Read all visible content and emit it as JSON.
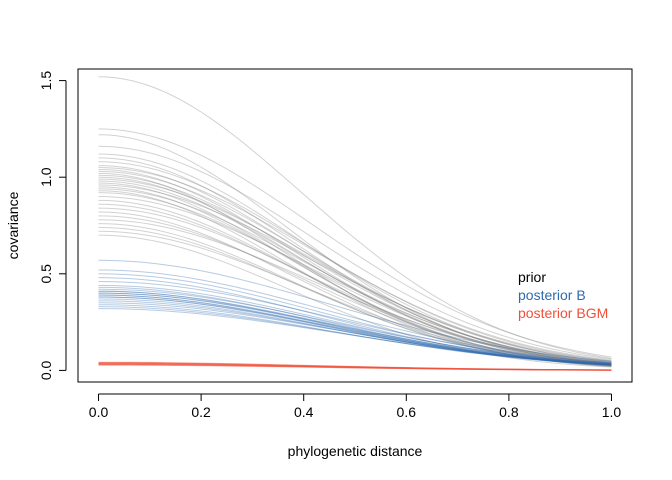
{
  "chart_data": {
    "type": "line",
    "xlabel": "phylogenetic distance",
    "ylabel": "covariance",
    "xlim": [
      -0.04,
      1.04
    ],
    "ylim": [
      -0.06,
      1.56
    ],
    "x_ticks": [
      0.0,
      0.2,
      0.4,
      0.6,
      0.8,
      1.0
    ],
    "x_tick_labels": [
      "0.0",
      "0.2",
      "0.4",
      "0.6",
      "0.8",
      "1.0"
    ],
    "y_ticks": [
      0.0,
      0.5,
      1.0,
      1.5
    ],
    "y_tick_labels": [
      "0.0",
      "0.5",
      "1.0",
      "1.5"
    ],
    "grid": false,
    "legend_placement": "right",
    "function": "y = etasq * exp(-rhosq * x^2)",
    "series": [
      {
        "name": "prior",
        "color": "#7f7f7f",
        "curves": [
          {
            "etasq": 1.52,
            "rhosq": 3.2
          },
          {
            "etasq": 1.25,
            "rhosq": 2.9
          },
          {
            "etasq": 1.22,
            "rhosq": 3.7
          },
          {
            "etasq": 1.16,
            "rhosq": 3.0
          },
          {
            "etasq": 1.12,
            "rhosq": 3.3
          },
          {
            "etasq": 1.1,
            "rhosq": 3.5
          },
          {
            "etasq": 1.08,
            "rhosq": 3.1
          },
          {
            "etasq": 1.06,
            "rhosq": 3.4
          },
          {
            "etasq": 1.05,
            "rhosq": 3.0
          },
          {
            "etasq": 1.04,
            "rhosq": 3.6
          },
          {
            "etasq": 1.03,
            "rhosq": 3.2
          },
          {
            "etasq": 1.02,
            "rhosq": 3.9
          },
          {
            "etasq": 1.01,
            "rhosq": 3.3
          },
          {
            "etasq": 1.0,
            "rhosq": 3.5
          },
          {
            "etasq": 0.99,
            "rhosq": 3.1
          },
          {
            "etasq": 0.98,
            "rhosq": 3.4
          },
          {
            "etasq": 0.97,
            "rhosq": 3.7
          },
          {
            "etasq": 0.96,
            "rhosq": 3.0
          },
          {
            "etasq": 0.95,
            "rhosq": 3.6
          },
          {
            "etasq": 0.94,
            "rhosq": 3.2
          },
          {
            "etasq": 0.93,
            "rhosq": 3.8
          },
          {
            "etasq": 0.92,
            "rhosq": 3.3
          },
          {
            "etasq": 0.9,
            "rhosq": 3.1
          },
          {
            "etasq": 0.88,
            "rhosq": 3.5
          },
          {
            "etasq": 0.86,
            "rhosq": 3.4
          },
          {
            "etasq": 0.84,
            "rhosq": 3.2
          },
          {
            "etasq": 0.82,
            "rhosq": 3.6
          },
          {
            "etasq": 0.8,
            "rhosq": 3.3
          },
          {
            "etasq": 0.78,
            "rhosq": 3.0
          },
          {
            "etasq": 0.76,
            "rhosq": 3.5
          },
          {
            "etasq": 0.74,
            "rhosq": 3.4
          },
          {
            "etasq": 0.72,
            "rhosq": 3.2
          },
          {
            "etasq": 0.7,
            "rhosq": 3.7
          }
        ]
      },
      {
        "name": "posterior B",
        "color": "#2f6aaf",
        "curves": [
          {
            "etasq": 0.57,
            "rhosq": 2.5
          },
          {
            "etasq": 0.52,
            "rhosq": 2.6
          },
          {
            "etasq": 0.5,
            "rhosq": 2.7
          },
          {
            "etasq": 0.48,
            "rhosq": 2.8
          },
          {
            "etasq": 0.46,
            "rhosq": 2.5
          },
          {
            "etasq": 0.44,
            "rhosq": 2.6
          },
          {
            "etasq": 0.43,
            "rhosq": 2.7
          },
          {
            "etasq": 0.42,
            "rhosq": 2.5
          },
          {
            "etasq": 0.41,
            "rhosq": 2.6
          },
          {
            "etasq": 0.41,
            "rhosq": 2.7
          },
          {
            "etasq": 0.4,
            "rhosq": 2.5
          },
          {
            "etasq": 0.4,
            "rhosq": 2.6
          },
          {
            "etasq": 0.39,
            "rhosq": 2.6
          },
          {
            "etasq": 0.39,
            "rhosq": 2.7
          },
          {
            "etasq": 0.38,
            "rhosq": 2.5
          },
          {
            "etasq": 0.38,
            "rhosq": 2.6
          },
          {
            "etasq": 0.37,
            "rhosq": 2.6
          },
          {
            "etasq": 0.36,
            "rhosq": 2.5
          },
          {
            "etasq": 0.35,
            "rhosq": 2.4
          },
          {
            "etasq": 0.34,
            "rhosq": 2.5
          },
          {
            "etasq": 0.33,
            "rhosq": 2.4
          },
          {
            "etasq": 0.32,
            "rhosq": 2.3
          }
        ]
      },
      {
        "name": "posterior BGM",
        "color": "#f05039",
        "curves": [
          {
            "etasq": 0.042,
            "rhosq": 3.0
          },
          {
            "etasq": 0.04,
            "rhosq": 3.0
          },
          {
            "etasq": 0.038,
            "rhosq": 3.0
          },
          {
            "etasq": 0.036,
            "rhosq": 3.0
          },
          {
            "etasq": 0.034,
            "rhosq": 3.0
          },
          {
            "etasq": 0.032,
            "rhosq": 3.0
          },
          {
            "etasq": 0.03,
            "rhosq": 3.0
          },
          {
            "etasq": 0.028,
            "rhosq": 3.0
          }
        ]
      }
    ],
    "legend": [
      {
        "label": "prior",
        "color": "#000000"
      },
      {
        "label": "posterior B",
        "color": "#2f6aaf"
      },
      {
        "label": "posterior BGM",
        "color": "#f05039"
      }
    ]
  }
}
